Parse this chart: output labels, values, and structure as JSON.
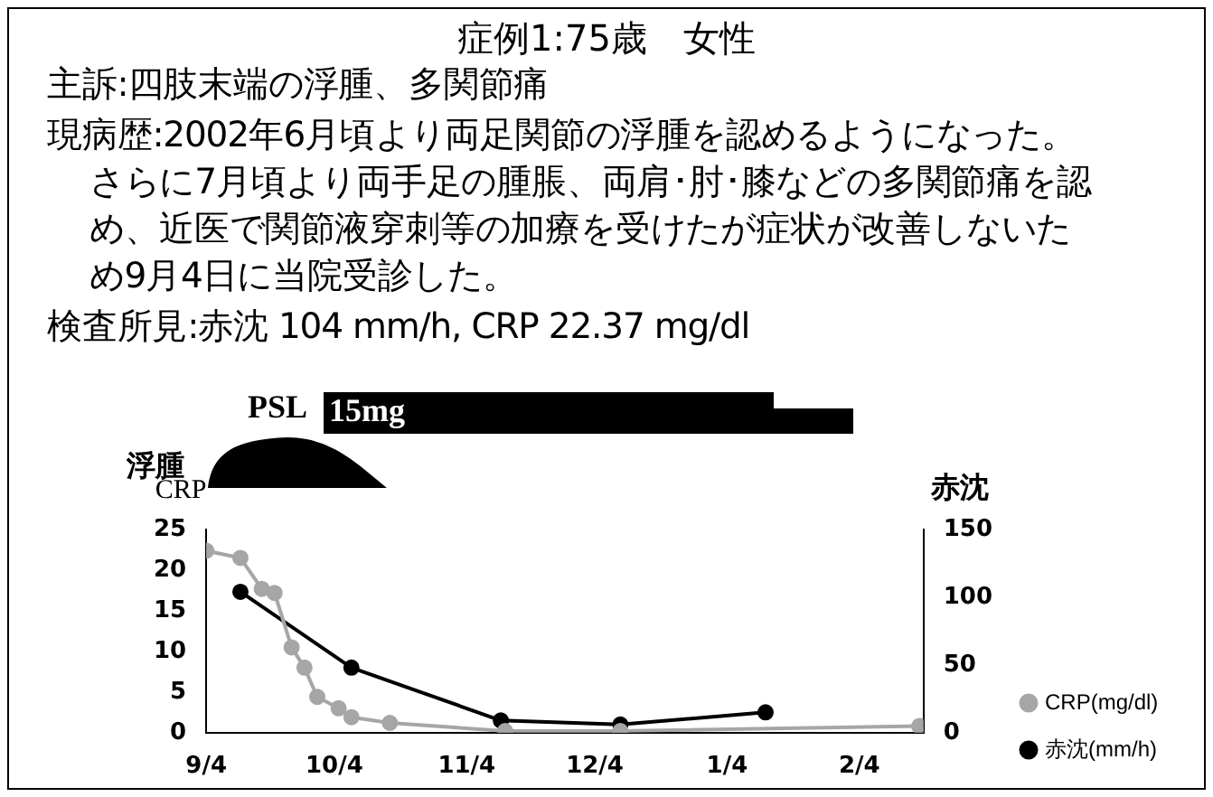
{
  "chart_data": {
    "type": "line",
    "title": "症例1:75歳　女性",
    "annotations": [
      "主訴:四肢末端の浮腫、多関節痛",
      "現病歴:2002年6月頃より両足関節の浮腫を認めるようになった。さらに7月頃より両手足の腫脹、両肩･肘･膝などの多関節痛を認め、近医で関節液穿刺等の加療を受けたが症状が改善しないため9月4日に当院受診した。",
      "検査所見:赤沈 104 mm/h, CRP 22.37 mg/dl",
      "PSL",
      "15mg",
      "浮腫"
    ],
    "ylabel": "CRP",
    "y2label": "赤沈",
    "series": [
      {
        "name": "CRP(mg/dl)",
        "color": "#a6a6a6",
        "x": [
          "2002-09-04",
          "2002-09-12",
          "2002-09-17",
          "2002-09-20",
          "2002-09-24",
          "2002-09-27",
          "2002-09-30",
          "2002-10-05",
          "2002-10-08",
          "2002-10-17",
          "2002-11-13",
          "2002-12-10",
          "2003-02-18"
        ],
        "values": [
          22.4,
          21.5,
          17.7,
          17.2,
          10.5,
          8.0,
          4.4,
          3.0,
          1.9,
          1.2,
          0.2,
          0.2,
          0.8
        ]
      },
      {
        "name": "赤沈(mm/h)",
        "color": "#000000",
        "axis": "y2",
        "x": [
          "2002-09-12",
          "2002-10-08",
          "2002-11-12",
          "2002-12-10",
          "2003-01-13"
        ],
        "values": [
          104,
          48,
          9,
          6,
          15
        ]
      }
    ],
    "xlim": [
      "2002-09-04",
      "2003-02-19"
    ],
    "xticks": [
      {
        "value": "2002-09-04",
        "label": "9/4"
      },
      {
        "value": "2002-10-04",
        "label": "10/4"
      },
      {
        "value": "2002-11-04",
        "label": "11/4"
      },
      {
        "value": "2002-12-04",
        "label": "12/4"
      },
      {
        "value": "2003-01-04",
        "label": "1/4"
      },
      {
        "value": "2003-02-04",
        "label": "2/4"
      }
    ],
    "ylim": [
      0,
      25
    ],
    "yticks": [
      0,
      5,
      10,
      15,
      20,
      25
    ],
    "y2lim": [
      0,
      150
    ],
    "y2ticks": [
      0,
      50,
      100,
      150
    ],
    "marker": "circle",
    "line_style": "solid",
    "grid": false,
    "legend": "right"
  }
}
